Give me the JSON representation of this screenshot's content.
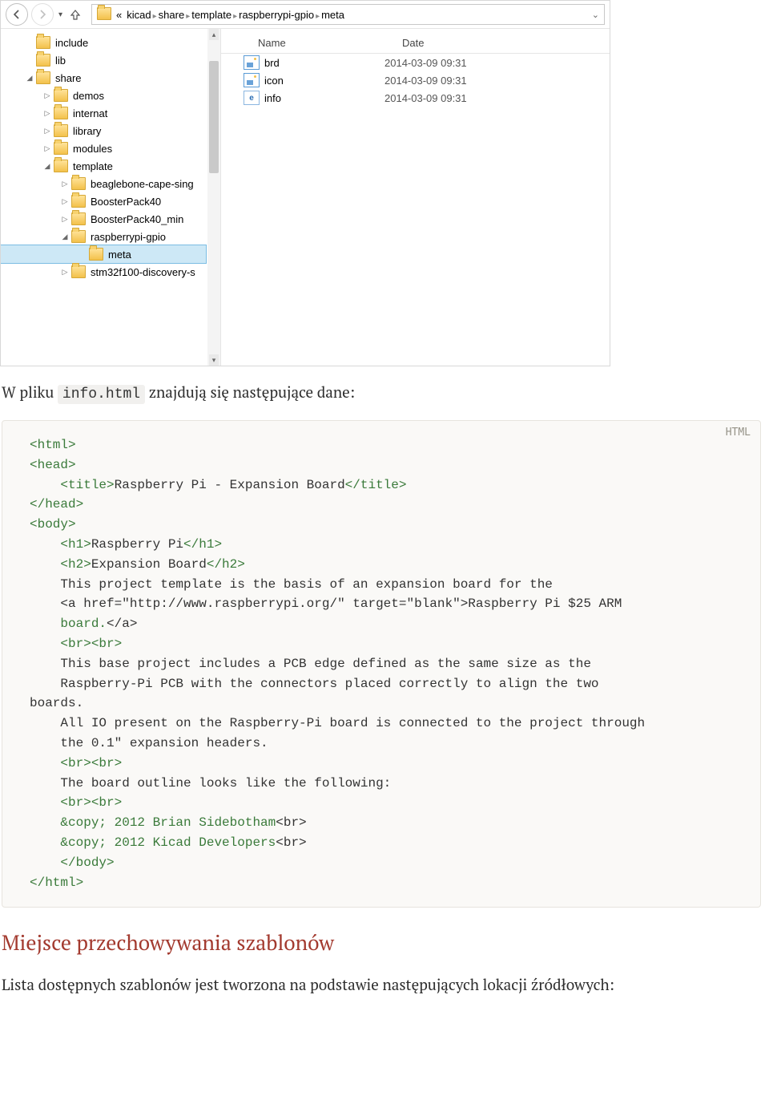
{
  "toolbar": {
    "breadcrumb_prefix": "«",
    "crumbs": [
      "kicad",
      "share",
      "template",
      "raspberrypi-gpio",
      "meta"
    ]
  },
  "tree": [
    {
      "depth": 1,
      "toggle": "",
      "label": "include"
    },
    {
      "depth": 1,
      "toggle": "",
      "label": "lib"
    },
    {
      "depth": 1,
      "toggle": "◢",
      "label": "share"
    },
    {
      "depth": 2,
      "toggle": "▷",
      "label": "demos"
    },
    {
      "depth": 2,
      "toggle": "▷",
      "label": "internat"
    },
    {
      "depth": 2,
      "toggle": "▷",
      "label": "library"
    },
    {
      "depth": 2,
      "toggle": "▷",
      "label": "modules"
    },
    {
      "depth": 2,
      "toggle": "◢",
      "label": "template"
    },
    {
      "depth": 3,
      "toggle": "▷",
      "label": "beaglebone-cape-sing"
    },
    {
      "depth": 3,
      "toggle": "▷",
      "label": "BoosterPack40"
    },
    {
      "depth": 3,
      "toggle": "▷",
      "label": "BoosterPack40_min"
    },
    {
      "depth": 3,
      "toggle": "◢",
      "label": "raspberrypi-gpio"
    },
    {
      "depth": 4,
      "toggle": "",
      "label": "meta",
      "selected": true
    },
    {
      "depth": 3,
      "toggle": "▷",
      "label": "stm32f100-discovery-s"
    }
  ],
  "file_header": {
    "name": "Name",
    "date": "Date"
  },
  "files": [
    {
      "icon": "img",
      "name": "brd",
      "date": "2014-03-09 09:31"
    },
    {
      "icon": "img",
      "name": "icon",
      "date": "2014-03-09 09:31"
    },
    {
      "icon": "html",
      "name": "info",
      "date": "2014-03-09 09:31"
    }
  ],
  "text": {
    "intro_before": "W pliku ",
    "intro_code": "info.html",
    "intro_after": " znajdują się następujące dane:",
    "lang_label": "HTML",
    "section_heading": "Miejsce przechowywania szablonów",
    "section_para": "Lista dostępnych szablonów jest tworzona na podstawie następujących lokacji źródłowych:"
  },
  "code_lines": [
    {
      "t": "tag",
      "v": "<html>"
    },
    {
      "t": "tag",
      "v": "<head>"
    },
    {
      "t": "mix",
      "v": "    <title>|Raspberry Pi - Expansion Board|</title>"
    },
    {
      "t": "tag",
      "v": "</head>"
    },
    {
      "t": "tag",
      "v": "<body>"
    },
    {
      "t": "mix",
      "v": "    <h1>|Raspberry Pi|</h1>"
    },
    {
      "t": "mix",
      "v": "    <h2>|Expansion Board|</h2>"
    },
    {
      "t": "plain",
      "v": "    This project template is the basis of an expansion board for the"
    },
    {
      "t": "attr",
      "v": "    <a href=\"http://www.raspberrypi.org/\" target=\"blank\">Raspberry Pi $25 ARM"
    },
    {
      "t": "mix",
      "v": "    |board.|</a>"
    },
    {
      "t": "tag",
      "v": "    <br><br>"
    },
    {
      "t": "plain",
      "v": "    This base project includes a PCB edge defined as the same size as the"
    },
    {
      "t": "plain",
      "v": "    Raspberry-Pi PCB with the connectors placed correctly to align the two"
    },
    {
      "t": "plain",
      "v": "boards."
    },
    {
      "t": "plain",
      "v": "    All IO present on the Raspberry-Pi board is connected to the project through"
    },
    {
      "t": "plain",
      "v": "    the 0.1\" expansion headers."
    },
    {
      "t": "tag",
      "v": "    <br><br>"
    },
    {
      "t": "plain",
      "v": "    The board outline looks like the following:"
    },
    {
      "t": "tag",
      "v": "    <br><br>"
    },
    {
      "t": "mix",
      "v": "    |&copy; 2012 Brian Sidebotham|<br>"
    },
    {
      "t": "mix",
      "v": "    |&copy; 2012 Kicad Developers|<br>"
    },
    {
      "t": "tag",
      "v": "    </body>"
    },
    {
      "t": "tag",
      "v": "</html>"
    }
  ]
}
